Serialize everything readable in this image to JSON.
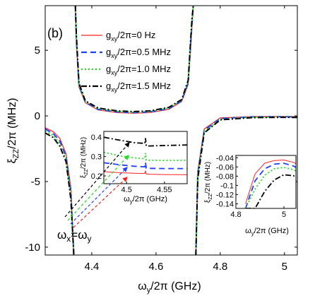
{
  "chart_data": {
    "type": "line",
    "panel_label": "(b)",
    "xlabel_main": "ω",
    "xlabel_sub": "y",
    "xlabel_tail": "/2π (GHz)",
    "ylabel_main": "ξ",
    "ylabel_sub": "ZZ",
    "ylabel_tail": "/2π (MHz)",
    "xlim": [
      4.255,
      5.04
    ],
    "ylim": [
      -10.6,
      8.4
    ],
    "xticks": [
      4.4,
      4.6,
      4.8,
      5
    ],
    "xtick_labels": [
      "4.4",
      "4.6",
      "4.8",
      "5"
    ],
    "yticks": [
      -10,
      -5,
      0,
      5
    ],
    "ytick_labels": [
      "-10",
      "-5",
      "0",
      "5"
    ],
    "poles": [
      4.348,
      4.718
    ],
    "legend_placement": "top-right",
    "series": [
      {
        "name": "g",
        "name_sub": "xy",
        "name_tail": "/2π=0 Hz",
        "color": "#ff2020",
        "dash": "solid",
        "x": [
          4.255,
          4.28,
          4.3,
          4.32,
          4.335,
          4.344,
          4.347,
          4.349,
          4.352,
          4.36,
          4.38,
          4.42,
          4.48,
          4.53,
          4.58,
          4.64,
          4.68,
          4.7,
          4.712,
          4.716,
          4.72,
          4.724,
          4.73,
          4.75,
          4.8,
          4.9,
          5.0,
          5.04
        ],
        "y": [
          -0.9,
          -1.2,
          -1.7,
          -2.9,
          -5.5,
          -10.6,
          null,
          8.4,
          5.6,
          2.2,
          1.0,
          0.45,
          0.25,
          0.2,
          0.25,
          0.5,
          1.1,
          2.4,
          6.8,
          8.4,
          null,
          -10.6,
          -4.2,
          -1.0,
          -0.15,
          -0.05,
          -0.04,
          -0.05
        ]
      },
      {
        "name": "g",
        "name_sub": "xy",
        "name_tail": "/2π=0.5 MHz",
        "color": "#1f3fff",
        "dash": "8,5",
        "x": [
          4.255,
          4.28,
          4.3,
          4.32,
          4.335,
          4.344,
          4.347,
          4.349,
          4.352,
          4.36,
          4.38,
          4.42,
          4.48,
          4.53,
          4.58,
          4.64,
          4.68,
          4.7,
          4.712,
          4.716,
          4.72,
          4.724,
          4.73,
          4.75,
          4.8,
          4.9,
          5.0,
          5.04
        ],
        "y": [
          -1.0,
          -1.35,
          -1.9,
          -3.1,
          -5.8,
          -10.6,
          null,
          8.4,
          5.8,
          2.3,
          1.05,
          0.5,
          0.3,
          0.25,
          0.3,
          0.55,
          1.15,
          2.5,
          7.0,
          8.4,
          null,
          -10.6,
          -4.4,
          -1.1,
          -0.2,
          -0.07,
          -0.06,
          -0.07
        ]
      },
      {
        "name": "g",
        "name_sub": "xy",
        "name_tail": "/2π=1.0 MHz",
        "color": "#22dd22",
        "dash": "2,3",
        "x": [
          4.255,
          4.28,
          4.3,
          4.32,
          4.335,
          4.344,
          4.347,
          4.349,
          4.352,
          4.36,
          4.38,
          4.42,
          4.48,
          4.53,
          4.58,
          4.64,
          4.68,
          4.7,
          4.712,
          4.716,
          4.72,
          4.724,
          4.73,
          4.75,
          4.8,
          4.9,
          5.0,
          5.04
        ],
        "y": [
          -1.15,
          -1.5,
          -2.1,
          -3.3,
          -6.1,
          -10.6,
          null,
          8.4,
          6.0,
          2.4,
          1.1,
          0.55,
          0.33,
          0.28,
          0.33,
          0.6,
          1.2,
          2.6,
          7.2,
          8.4,
          null,
          -10.6,
          -4.6,
          -1.2,
          -0.25,
          -0.1,
          -0.08,
          -0.09
        ]
      },
      {
        "name": "g",
        "name_sub": "xy",
        "name_tail": "/2π=1.5 MHz",
        "color": "#000000",
        "dash": "8,3,2,3",
        "x": [
          4.255,
          4.28,
          4.3,
          4.32,
          4.335,
          4.344,
          4.347,
          4.349,
          4.352,
          4.36,
          4.38,
          4.42,
          4.48,
          4.53,
          4.58,
          4.64,
          4.68,
          4.7,
          4.712,
          4.716,
          4.72,
          4.724,
          4.73,
          4.75,
          4.8,
          4.9,
          5.0,
          5.04
        ],
        "y": [
          -1.3,
          -1.65,
          -2.3,
          -3.5,
          -6.4,
          -10.6,
          null,
          8.4,
          6.2,
          2.5,
          1.15,
          0.6,
          0.38,
          0.33,
          0.38,
          0.65,
          1.25,
          2.7,
          7.4,
          8.4,
          null,
          -10.6,
          -4.8,
          -1.3,
          -0.3,
          -0.13,
          -0.11,
          -0.12
        ]
      }
    ],
    "inset1": {
      "xlim": [
        4.47,
        4.58
      ],
      "ylim": [
        0.16,
        0.43
      ],
      "xticks": [
        4.5,
        4.55
      ],
      "xtick_labels": [
        "4.5",
        "4.55"
      ],
      "yticks": [
        0.2,
        0.3,
        0.4
      ],
      "ytick_labels": [
        "0.2",
        "0.3",
        "0.4"
      ],
      "xlabel_main": "ω",
      "xlabel_sub": "y",
      "xlabel_tail": "/2π (GHz)",
      "ylabel_main": "ξ",
      "ylabel_sub": "ZZ",
      "ylabel_tail": "/2π (MHz)",
      "x": [
        4.47,
        4.49,
        4.51,
        4.52,
        4.524,
        4.525,
        4.526,
        4.53,
        4.55,
        4.58
      ],
      "series_y": [
        [
          0.222,
          0.217,
          0.214,
          0.213,
          0.213,
          0.225,
          0.21,
          0.209,
          0.207,
          0.206
        ],
        [
          0.268,
          0.258,
          0.25,
          0.248,
          0.247,
          0.27,
          0.24,
          0.239,
          0.238,
          0.238
        ],
        [
          0.322,
          0.305,
          0.293,
          0.29,
          0.289,
          0.318,
          0.282,
          0.281,
          0.28,
          0.281
        ],
        [
          0.4,
          0.385,
          0.372,
          0.369,
          0.368,
          0.395,
          0.355,
          0.355,
          0.357,
          0.36
        ]
      ]
    },
    "inset2": {
      "xlim": [
        4.8,
        5.05
      ],
      "ylim": [
        -0.15,
        -0.035
      ],
      "xticks": [
        4.8,
        5
      ],
      "xtick_labels": [
        "4.8",
        "5"
      ],
      "yticks": [
        -0.04,
        -0.06,
        -0.08,
        -0.1,
        -0.12,
        -0.14
      ],
      "ytick_labels": [
        "-0.04",
        "-0.06",
        "-0.08",
        "-0.1",
        "-0.12",
        "-0.14"
      ],
      "xlabel_main": "ω",
      "xlabel_sub": "y",
      "xlabel_tail": "/2π (GHz)",
      "ylabel_main": "ξ",
      "ylabel_sub": "ZZ",
      "ylabel_tail": "/2π (MHz)",
      "x": [
        4.84,
        4.88,
        4.92,
        4.96,
        5.0,
        5.04,
        5.05
      ],
      "series_y": [
        [
          -0.14,
          -0.075,
          -0.052,
          -0.046,
          -0.045,
          -0.05,
          -0.053
        ],
        [
          -0.15,
          -0.09,
          -0.064,
          -0.054,
          -0.052,
          -0.058,
          -0.061
        ],
        [
          -0.15,
          -0.108,
          -0.078,
          -0.064,
          -0.061,
          -0.066,
          -0.069
        ],
        [
          -0.15,
          -0.15,
          -0.113,
          -0.088,
          -0.077,
          -0.079,
          -0.082
        ]
      ]
    },
    "annotation_main": "ω",
    "annotation_x_sub": "x",
    "annotation_eq": "=ω",
    "annotation_y_sub": "y"
  }
}
